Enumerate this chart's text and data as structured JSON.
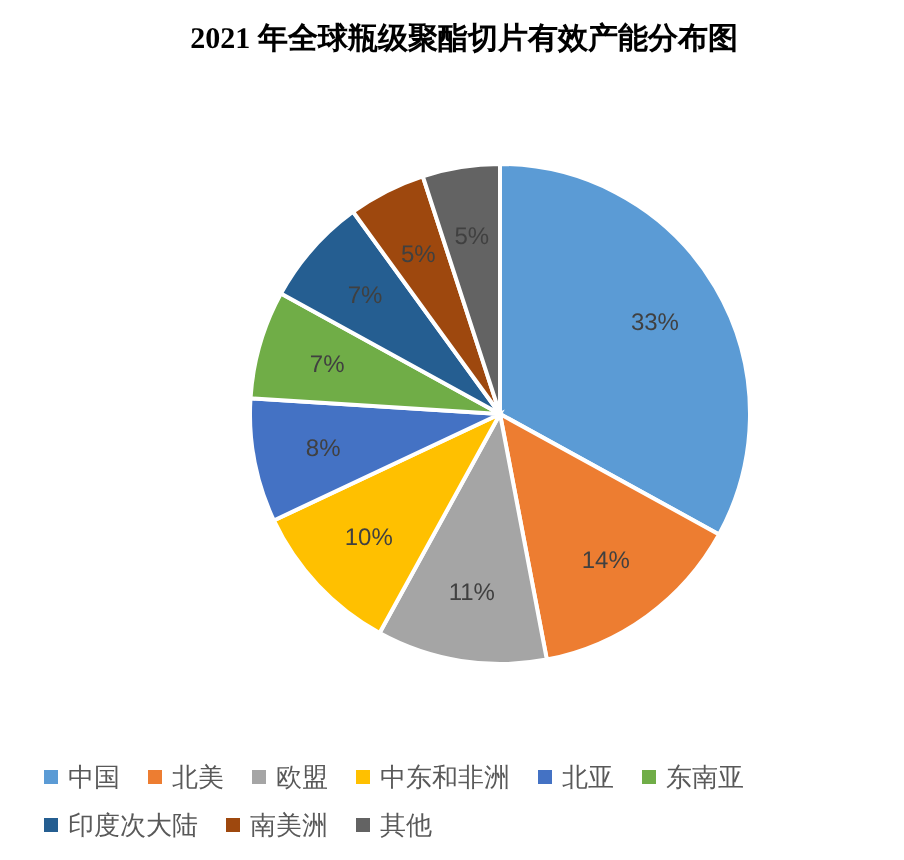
{
  "chart_data": {
    "type": "pie",
    "title": "2021 年全球瓶级聚酯切片有效产能分布图",
    "categories": [
      "中国",
      "北美",
      "欧盟",
      "中东和非洲",
      "北亚",
      "东南亚",
      "印度次大陆",
      "南美洲",
      "其他"
    ],
    "values": [
      33,
      14,
      11,
      10,
      8,
      7,
      7,
      5,
      5
    ],
    "colors": [
      "#5b9bd5",
      "#ed7d31",
      "#a5a5a5",
      "#ffc000",
      "#4472c4",
      "#70ad47",
      "#255e91",
      "#9e480e",
      "#636363"
    ],
    "value_labels": [
      "33%",
      "14%",
      "11%",
      "10%",
      "8%",
      "7%",
      "7%",
      "5%",
      "5%"
    ],
    "legend": "bottom"
  }
}
